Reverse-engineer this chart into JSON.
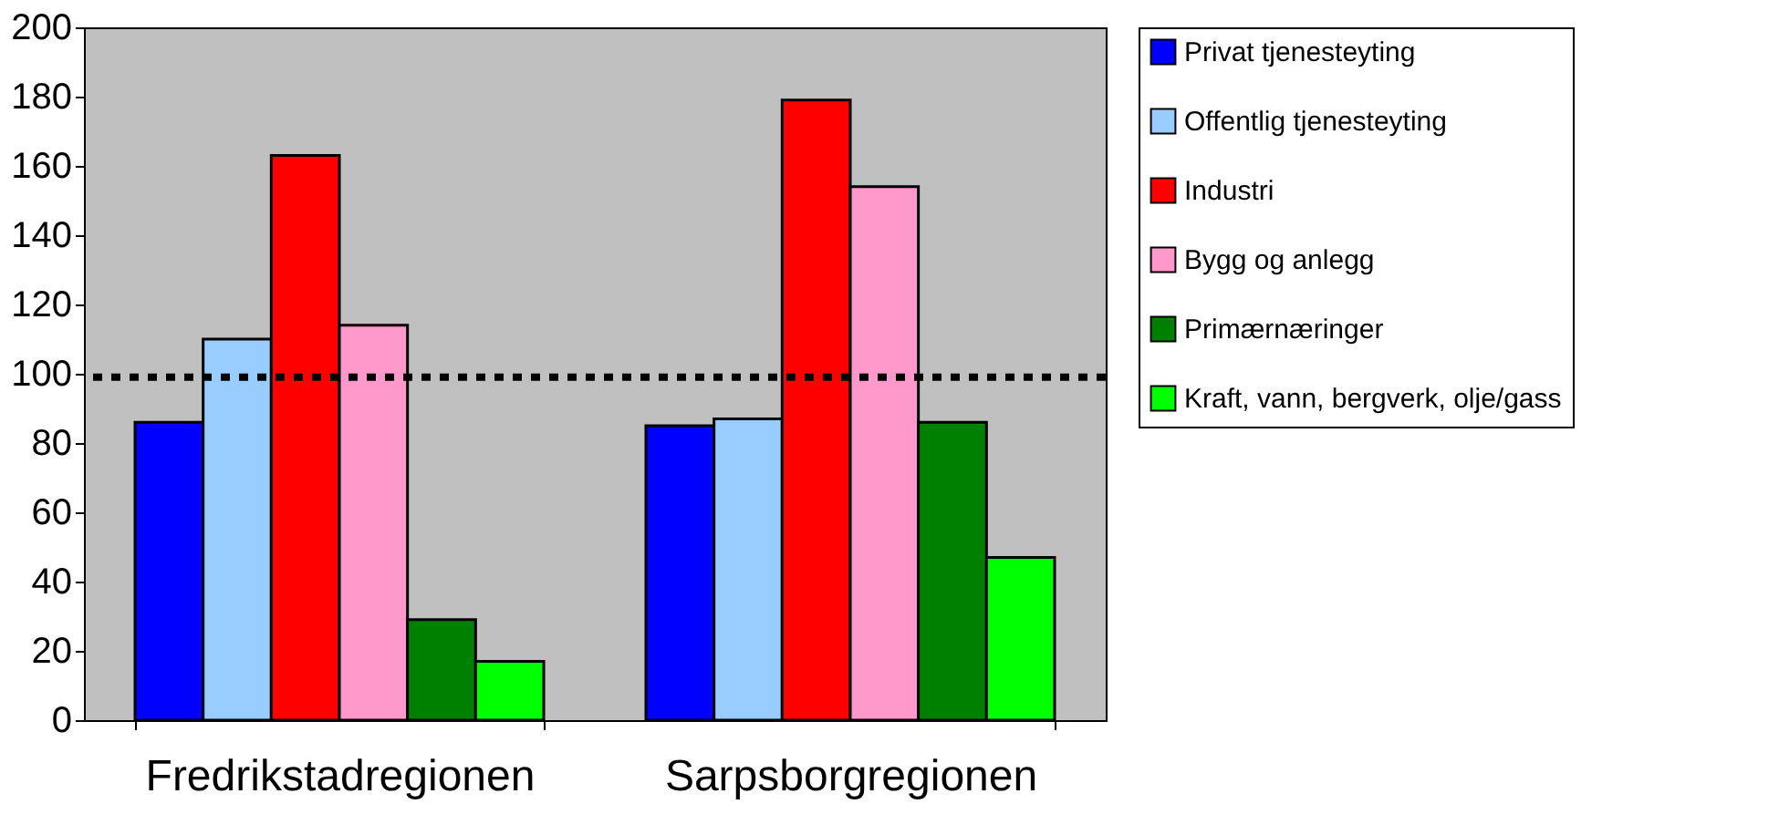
{
  "chart_data": {
    "type": "bar",
    "categories": [
      "Fredrikstadregionen",
      "Sarpsborgregionen"
    ],
    "series": [
      {
        "name": "Privat tjenesteyting",
        "color": "#0000ff",
        "values": [
          86,
          85
        ]
      },
      {
        "name": "Offentlig tjenesteyting",
        "color": "#99ccff",
        "values": [
          110,
          87
        ]
      },
      {
        "name": "Industri",
        "color": "#ff0000",
        "values": [
          163,
          179
        ]
      },
      {
        "name": "Bygg og anlegg",
        "color": "#ff99cc",
        "values": [
          114,
          154
        ]
      },
      {
        "name": "Primærnæringer",
        "color": "#008000",
        "values": [
          29,
          86
        ]
      },
      {
        "name": "Kraft, vann, bergverk, olje/gass",
        "color": "#00ff00",
        "values": [
          17,
          47
        ]
      }
    ],
    "ylim": [
      0,
      200
    ],
    "yticks": [
      0,
      20,
      40,
      60,
      80,
      100,
      120,
      140,
      160,
      180,
      200
    ],
    "ref_lines": [
      {
        "axis": "y",
        "value": 99,
        "line_style": "dotted",
        "color": "#000000"
      }
    ],
    "grid": false,
    "legend": "right"
  }
}
